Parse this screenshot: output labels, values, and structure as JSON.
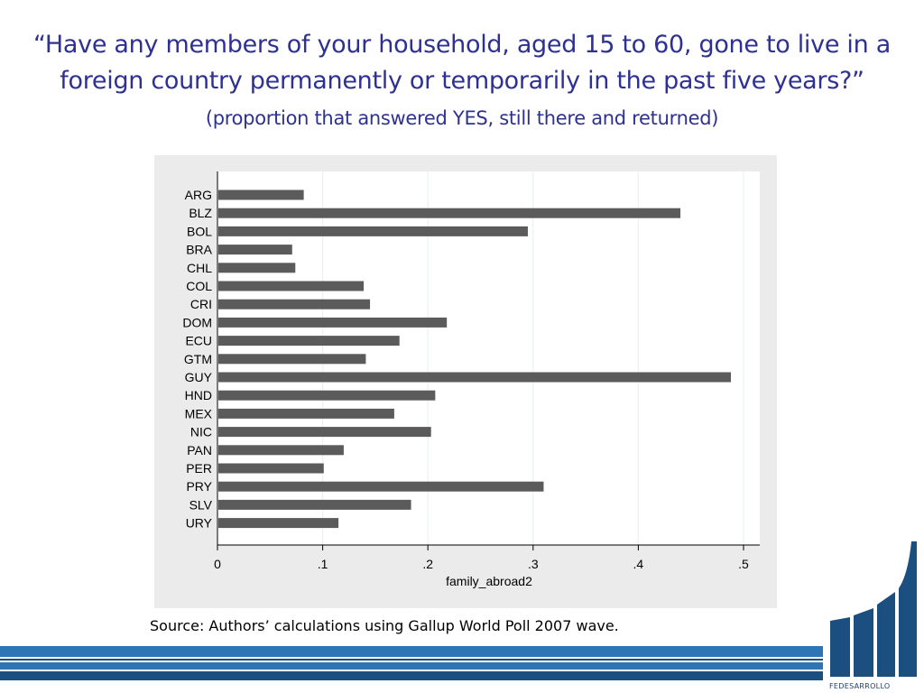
{
  "title": {
    "main": "“Have any members of your household, aged 15 to 60, gone to live in a foreign country permanently or temporarily in the past five years?”",
    "sub": "(proportion that answered YES, still there and returned)"
  },
  "source": "Source: Authors’ calculations using Gallup World Poll 2007 wave.",
  "logo": {
    "text": "FEDESARROLLO",
    "color": "#1b4f80"
  },
  "colors": {
    "title": "#2e3192",
    "bar": "#5b5b5b",
    "panel": "#ebebeb",
    "stripe_light": "#2e75b6",
    "stripe_dark": "#1b4f80"
  },
  "chart_data": {
    "type": "bar",
    "orientation": "horizontal",
    "categories": [
      "ARG",
      "BLZ",
      "BOL",
      "BRA",
      "CHL",
      "COL",
      "CRI",
      "DOM",
      "ECU",
      "GTM",
      "GUY",
      "HND",
      "MEX",
      "NIC",
      "PAN",
      "PER",
      "PRY",
      "SLV",
      "URY"
    ],
    "values": [
      0.082,
      0.44,
      0.295,
      0.071,
      0.074,
      0.139,
      0.145,
      0.218,
      0.173,
      0.141,
      0.488,
      0.207,
      0.168,
      0.203,
      0.12,
      0.101,
      0.31,
      0.184,
      0.115
    ],
    "xlabel": "family_abroad2",
    "xticks": [
      "0",
      ".1",
      ".2",
      ".3",
      ".4",
      ".5"
    ],
    "xtick_values": [
      0,
      0.1,
      0.2,
      0.3,
      0.4,
      0.5
    ],
    "xlim": [
      0,
      0.5
    ],
    "grid": true
  }
}
